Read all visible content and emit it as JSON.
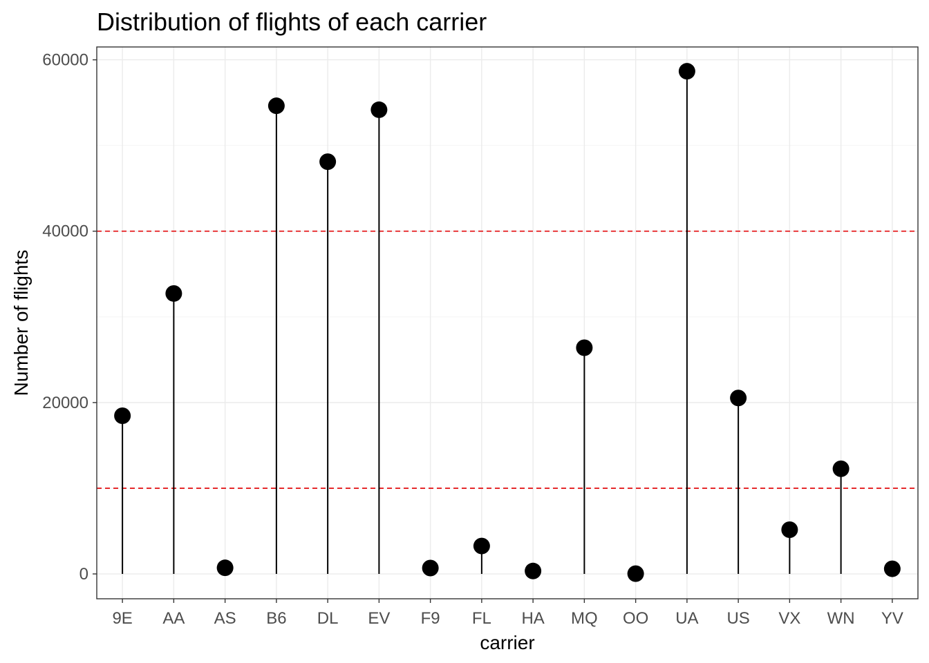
{
  "chart_data": {
    "type": "scatter",
    "style": "lollipop",
    "title": "Distribution of flights of each carrier",
    "xlabel": "carrier",
    "ylabel": "Number of flights",
    "categories": [
      "9E",
      "AA",
      "AS",
      "B6",
      "DL",
      "EV",
      "F9",
      "FL",
      "HA",
      "MQ",
      "OO",
      "UA",
      "US",
      "VX",
      "WN",
      "YV"
    ],
    "values": [
      18460,
      32729,
      714,
      54635,
      48110,
      54173,
      685,
      3260,
      342,
      26397,
      32,
      58665,
      20536,
      5162,
      12275,
      601
    ],
    "yticks": [
      0,
      20000,
      40000,
      60000
    ],
    "ylim": [
      -2900,
      61500
    ],
    "reference_lines": [
      10000,
      40000
    ],
    "reference_line_color": "#e41a1c",
    "point_color": "#000000",
    "grid": true,
    "legend": "none"
  }
}
